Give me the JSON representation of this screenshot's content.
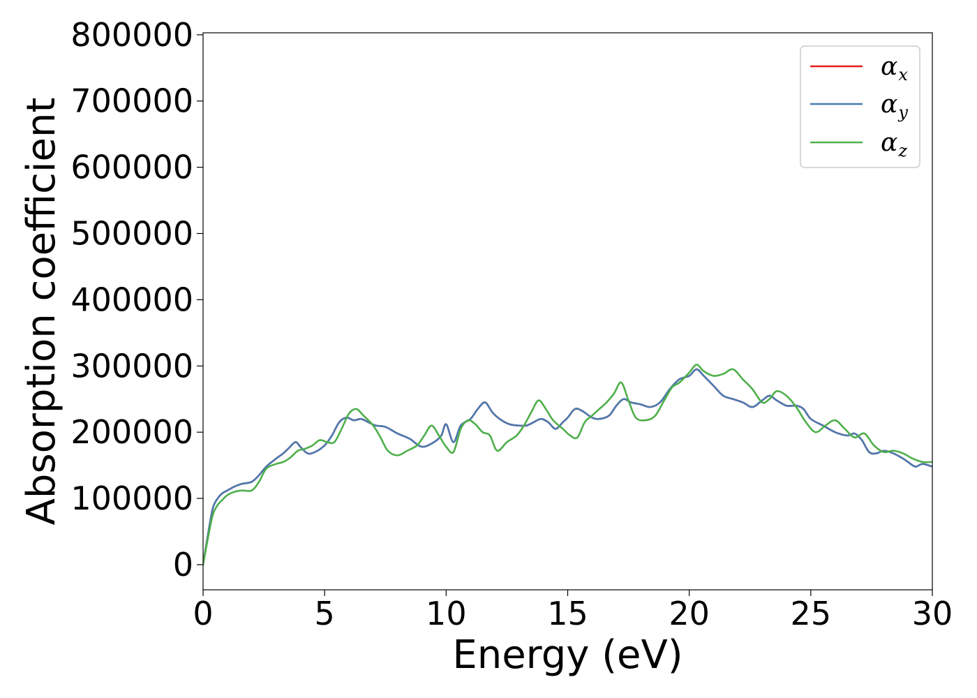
{
  "chart_data": {
    "type": "line",
    "title": "",
    "xlabel": "Energy (eV)",
    "ylabel": "Absorption coefficient",
    "xlim": [
      0,
      30
    ],
    "ylim": [
      -38000,
      803000
    ],
    "xticks": [
      0,
      5,
      10,
      15,
      20,
      25,
      30
    ],
    "yticks": [
      0,
      100000,
      200000,
      300000,
      400000,
      500000,
      600000,
      700000,
      800000
    ],
    "grid": false,
    "legend": "top-right",
    "series": [
      {
        "name": "α",
        "name_sub": "x",
        "color": "#e41a1c",
        "x": [
          0,
          0.2,
          0.4,
          0.6,
          0.8,
          1.0,
          1.3,
          1.6,
          2.0,
          2.3,
          2.6,
          3.0,
          3.3,
          3.5,
          3.8,
          4.0,
          4.3,
          4.6,
          5.0,
          5.3,
          5.6,
          5.9,
          6.2,
          6.5,
          6.8,
          7.1,
          7.5,
          8.0,
          8.5,
          9.0,
          9.5,
          9.8,
          10.0,
          10.3,
          10.6,
          11.0,
          11.3,
          11.6,
          11.9,
          12.2,
          12.6,
          13.0,
          13.3,
          13.6,
          13.9,
          14.2,
          14.5,
          14.8,
          15.0,
          15.3,
          15.6,
          16.0,
          16.3,
          16.7,
          17.0,
          17.3,
          17.6,
          18.0,
          18.4,
          18.8,
          19.2,
          19.6,
          20.0,
          20.3,
          20.6,
          21.0,
          21.4,
          21.8,
          22.2,
          22.6,
          23.0,
          23.3,
          23.6,
          24.0,
          24.4,
          24.7,
          25.0,
          25.5,
          26.0,
          26.5,
          26.8,
          27.1,
          27.4,
          27.7,
          28.0,
          28.4,
          28.8,
          29.0,
          29.3,
          29.6,
          30.0
        ],
        "y": [
          0,
          45000,
          85000,
          100000,
          108000,
          112000,
          118000,
          122000,
          125000,
          135000,
          148000,
          160000,
          168000,
          175000,
          185000,
          178000,
          168000,
          170000,
          180000,
          195000,
          215000,
          222000,
          218000,
          220000,
          215000,
          210000,
          208000,
          198000,
          190000,
          178000,
          185000,
          195000,
          212000,
          185000,
          210000,
          220000,
          235000,
          245000,
          230000,
          220000,
          212000,
          210000,
          210000,
          215000,
          220000,
          215000,
          205000,
          215000,
          222000,
          235000,
          232000,
          222000,
          220000,
          225000,
          240000,
          250000,
          245000,
          242000,
          238000,
          245000,
          265000,
          280000,
          285000,
          295000,
          285000,
          270000,
          255000,
          250000,
          245000,
          238000,
          248000,
          255000,
          248000,
          240000,
          240000,
          235000,
          220000,
          210000,
          200000,
          195000,
          198000,
          188000,
          170000,
          168000,
          172000,
          168000,
          160000,
          155000,
          148000,
          152000,
          148000
        ]
      },
      {
        "name": "α",
        "name_sub": "y",
        "color": "#4a7ab0",
        "x": [
          0,
          0.2,
          0.4,
          0.6,
          0.8,
          1.0,
          1.3,
          1.6,
          2.0,
          2.3,
          2.6,
          3.0,
          3.3,
          3.5,
          3.8,
          4.0,
          4.3,
          4.6,
          5.0,
          5.3,
          5.6,
          5.9,
          6.2,
          6.5,
          6.8,
          7.1,
          7.5,
          8.0,
          8.5,
          9.0,
          9.5,
          9.8,
          10.0,
          10.3,
          10.6,
          11.0,
          11.3,
          11.6,
          11.9,
          12.2,
          12.6,
          13.0,
          13.3,
          13.6,
          13.9,
          14.2,
          14.5,
          14.8,
          15.0,
          15.3,
          15.6,
          16.0,
          16.3,
          16.7,
          17.0,
          17.3,
          17.6,
          18.0,
          18.4,
          18.8,
          19.2,
          19.6,
          20.0,
          20.3,
          20.6,
          21.0,
          21.4,
          21.8,
          22.2,
          22.6,
          23.0,
          23.3,
          23.6,
          24.0,
          24.4,
          24.7,
          25.0,
          25.5,
          26.0,
          26.5,
          26.8,
          27.1,
          27.4,
          27.7,
          28.0,
          28.4,
          28.8,
          29.0,
          29.3,
          29.6,
          30.0
        ],
        "y": [
          0,
          45000,
          85000,
          100000,
          108000,
          112000,
          118000,
          122000,
          125000,
          135000,
          148000,
          160000,
          168000,
          175000,
          185000,
          178000,
          168000,
          170000,
          180000,
          195000,
          215000,
          222000,
          218000,
          220000,
          215000,
          210000,
          208000,
          198000,
          190000,
          178000,
          185000,
          195000,
          212000,
          185000,
          210000,
          220000,
          235000,
          245000,
          230000,
          220000,
          212000,
          210000,
          210000,
          215000,
          220000,
          215000,
          205000,
          215000,
          222000,
          235000,
          232000,
          222000,
          220000,
          225000,
          240000,
          250000,
          245000,
          242000,
          238000,
          245000,
          265000,
          280000,
          285000,
          295000,
          285000,
          270000,
          255000,
          250000,
          245000,
          238000,
          248000,
          255000,
          248000,
          240000,
          240000,
          235000,
          220000,
          210000,
          200000,
          195000,
          198000,
          188000,
          170000,
          168000,
          172000,
          168000,
          160000,
          155000,
          148000,
          152000,
          148000
        ]
      },
      {
        "name": "α",
        "name_sub": "z",
        "color": "#4daf4a",
        "x": [
          0,
          0.2,
          0.4,
          0.6,
          0.8,
          1.0,
          1.3,
          1.6,
          2.0,
          2.3,
          2.6,
          3.0,
          3.3,
          3.6,
          3.9,
          4.2,
          4.5,
          4.8,
          5.1,
          5.4,
          5.7,
          6.0,
          6.3,
          6.6,
          7.0,
          7.3,
          7.6,
          8.0,
          8.4,
          8.8,
          9.1,
          9.4,
          9.7,
          10.0,
          10.3,
          10.6,
          10.9,
          11.2,
          11.5,
          11.8,
          12.1,
          12.5,
          12.9,
          13.2,
          13.5,
          13.8,
          14.1,
          14.4,
          14.8,
          15.1,
          15.4,
          15.7,
          16.0,
          16.3,
          16.6,
          16.9,
          17.2,
          17.5,
          17.8,
          18.2,
          18.6,
          19.0,
          19.3,
          19.6,
          20.0,
          20.3,
          20.6,
          21.0,
          21.4,
          21.8,
          22.2,
          22.6,
          23.0,
          23.3,
          23.6,
          24.0,
          24.4,
          24.8,
          25.2,
          25.6,
          26.0,
          26.4,
          26.8,
          27.2,
          27.6,
          28.0,
          28.4,
          28.8,
          29.2,
          29.6,
          30.0
        ],
        "y": [
          0,
          40000,
          75000,
          90000,
          98000,
          105000,
          110000,
          112000,
          112000,
          125000,
          145000,
          152000,
          155000,
          162000,
          172000,
          175000,
          180000,
          188000,
          185000,
          185000,
          205000,
          228000,
          235000,
          225000,
          210000,
          192000,
          172000,
          165000,
          172000,
          180000,
          195000,
          210000,
          195000,
          178000,
          170000,
          205000,
          218000,
          212000,
          200000,
          195000,
          172000,
          185000,
          195000,
          210000,
          230000,
          248000,
          235000,
          218000,
          205000,
          195000,
          192000,
          215000,
          225000,
          235000,
          245000,
          258000,
          275000,
          248000,
          222000,
          218000,
          225000,
          250000,
          268000,
          275000,
          290000,
          302000,
          292000,
          285000,
          288000,
          295000,
          280000,
          265000,
          245000,
          250000,
          262000,
          255000,
          238000,
          215000,
          200000,
          210000,
          218000,
          205000,
          192000,
          198000,
          180000,
          170000,
          172000,
          168000,
          160000,
          155000,
          155000
        ]
      }
    ]
  }
}
